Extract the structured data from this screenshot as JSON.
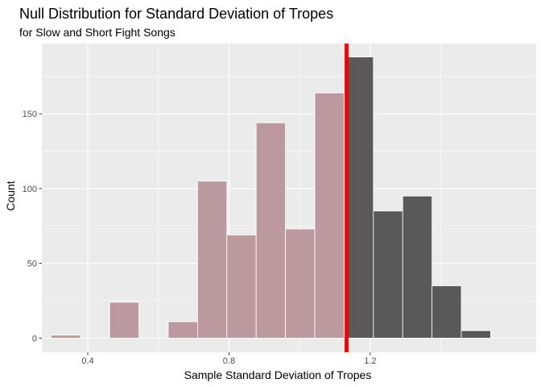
{
  "chart_data": {
    "type": "bar",
    "title": "Null Distribution for Standard Deviation of Tropes",
    "subtitle": "for Slow and Short Fight Songs",
    "xlabel": "Sample Standard Deviation of Tropes",
    "ylabel": "Count",
    "xlim": [
      0.27,
      1.67
    ],
    "ylim": [
      -9.5,
      197
    ],
    "x_ticks": [
      0.4,
      0.8,
      1.2
    ],
    "x_tick_labels": [
      "0.4",
      "0.8",
      "1.2"
    ],
    "y_ticks": [
      0,
      50,
      100,
      150
    ],
    "y_tick_labels": [
      "0",
      "50",
      "100",
      "150"
    ],
    "grid": true,
    "legend": "none",
    "observed_statistic": 1.133,
    "bins": [
      {
        "start": 0.296,
        "end": 0.379,
        "count": 2
      },
      {
        "start": 0.379,
        "end": 0.462,
        "count": 0
      },
      {
        "start": 0.462,
        "end": 0.545,
        "count": 24
      },
      {
        "start": 0.545,
        "end": 0.628,
        "count": 0
      },
      {
        "start": 0.628,
        "end": 0.711,
        "count": 11
      },
      {
        "start": 0.711,
        "end": 0.794,
        "count": 105
      },
      {
        "start": 0.794,
        "end": 0.877,
        "count": 69
      },
      {
        "start": 0.877,
        "end": 0.96,
        "count": 144
      },
      {
        "start": 0.96,
        "end": 1.043,
        "count": 73
      },
      {
        "start": 1.043,
        "end": 1.126,
        "count": 164
      },
      {
        "start": 1.126,
        "end": 1.209,
        "count": 188
      },
      {
        "start": 1.209,
        "end": 1.292,
        "count": 85
      },
      {
        "start": 1.292,
        "end": 1.375,
        "count": 95
      },
      {
        "start": 1.375,
        "end": 1.458,
        "count": 35
      },
      {
        "start": 1.458,
        "end": 1.541,
        "count": 5
      }
    ],
    "colors": {
      "panel_background": "#ebebeb",
      "grid": "#ffffff",
      "bar_fill": "#595959",
      "bar_shaded_fill": "#bc999e",
      "bar_outline": "#ffffff",
      "observed_line": "#ee0000"
    }
  }
}
